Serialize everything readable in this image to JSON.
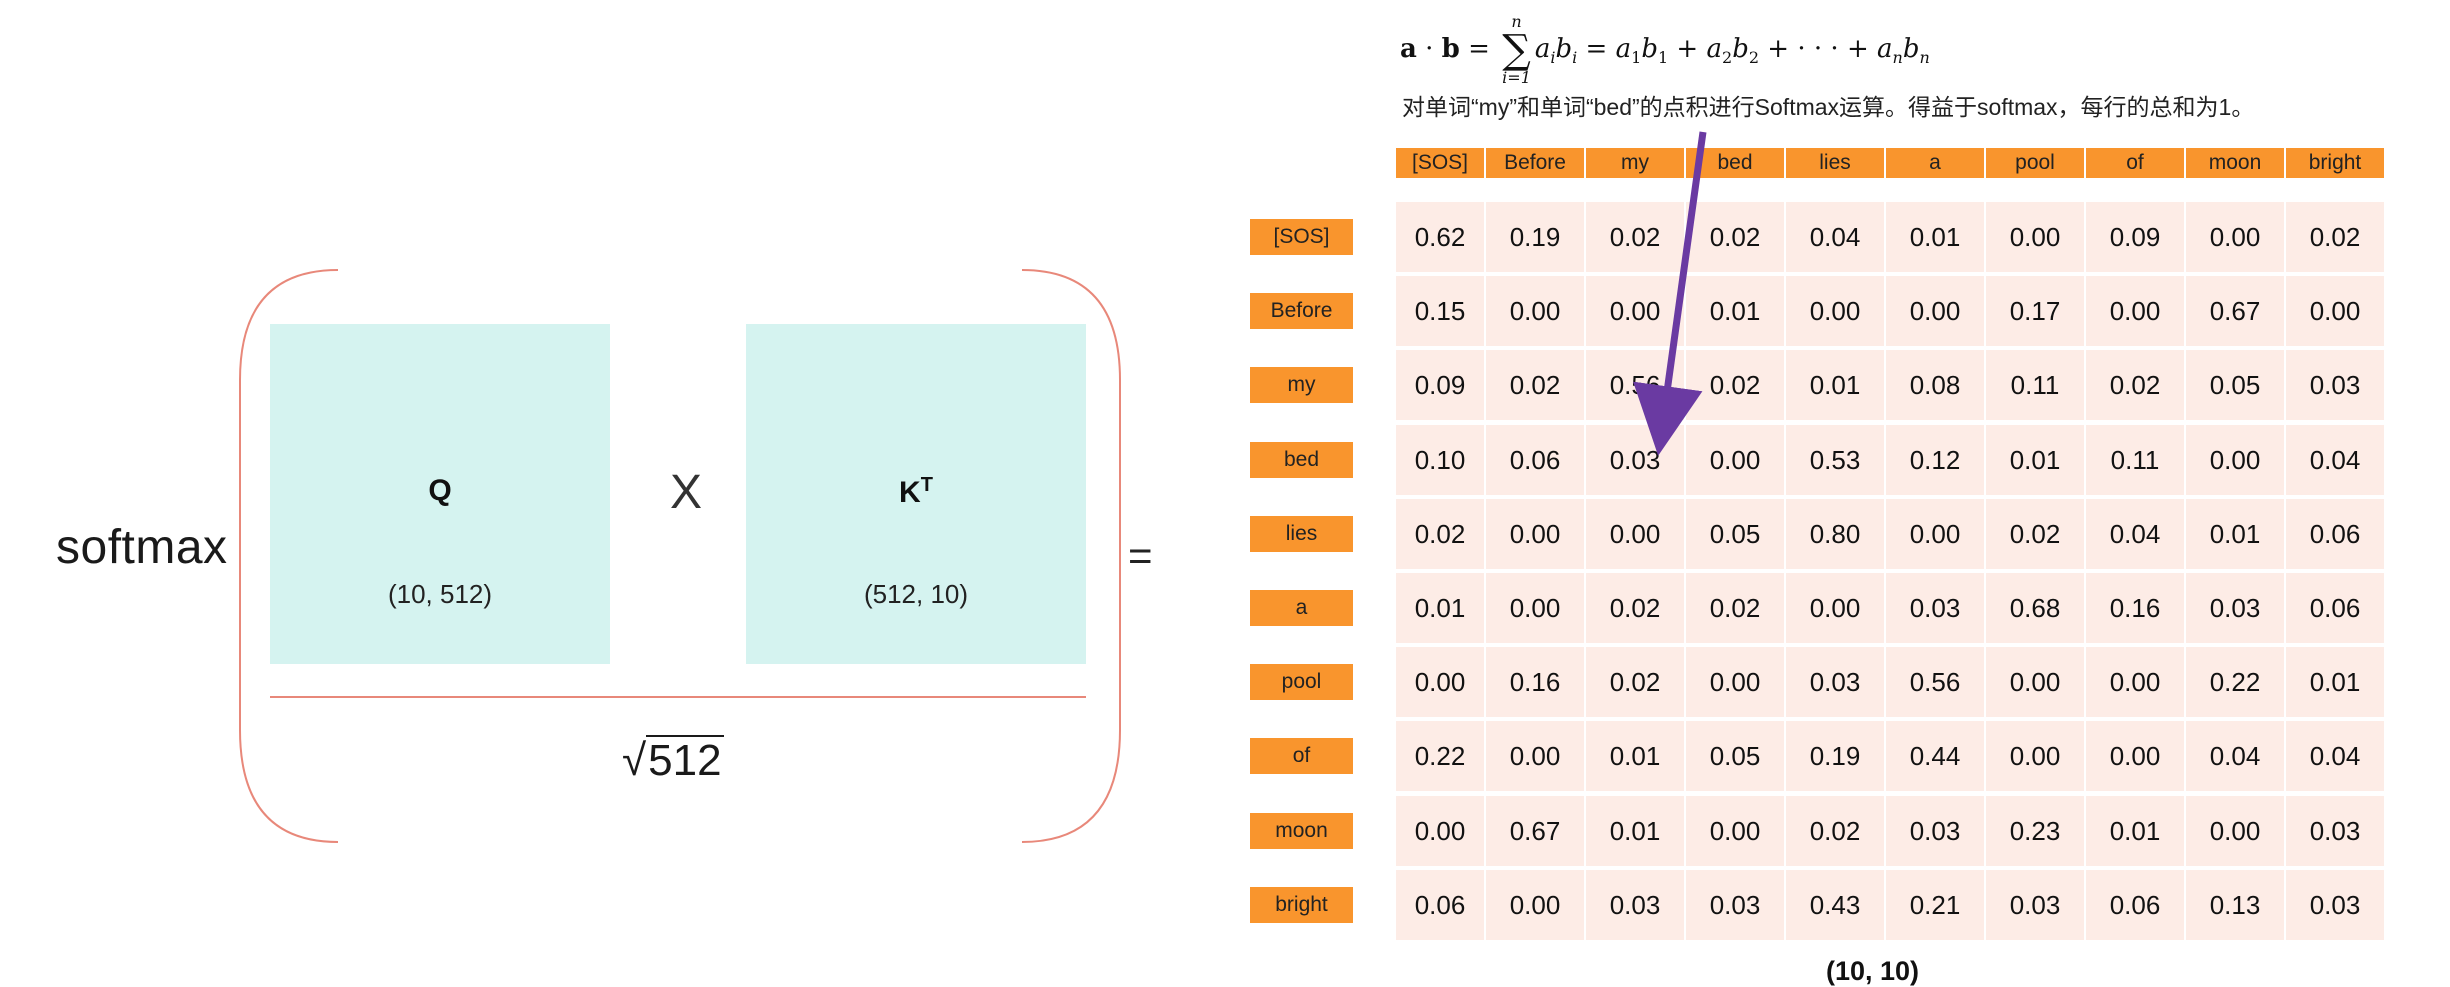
{
  "left_formula": {
    "softmax": "softmax",
    "q_label": "Q",
    "q_shape": "(10, 512)",
    "times": "X",
    "k_label": "K",
    "k_superscript": "T",
    "k_shape": "(512, 10)",
    "sqrt_value": "512",
    "equals": "="
  },
  "top": {
    "caption": "对单词“my”和单词“bed”的点积进行Softmax运算。得益于softmax，每行的总和为1。"
  },
  "table": {
    "headers": [
      "[SOS]",
      "Before",
      "my",
      "bed",
      "lies",
      "a",
      "pool",
      "of",
      "moon",
      "bright"
    ],
    "rows": [
      {
        "label": "[SOS]",
        "values": [
          "0.62",
          "0.19",
          "0.02",
          "0.02",
          "0.04",
          "0.01",
          "0.00",
          "0.09",
          "0.00",
          "0.02"
        ]
      },
      {
        "label": "Before",
        "values": [
          "0.15",
          "0.00",
          "0.00",
          "0.01",
          "0.00",
          "0.00",
          "0.17",
          "0.00",
          "0.67",
          "0.00"
        ]
      },
      {
        "label": "my",
        "values": [
          "0.09",
          "0.02",
          "0.56",
          "0.02",
          "0.01",
          "0.08",
          "0.11",
          "0.02",
          "0.05",
          "0.03"
        ]
      },
      {
        "label": "bed",
        "values": [
          "0.10",
          "0.06",
          "0.03",
          "0.00",
          "0.53",
          "0.12",
          "0.01",
          "0.11",
          "0.00",
          "0.04"
        ]
      },
      {
        "label": "lies",
        "values": [
          "0.02",
          "0.00",
          "0.00",
          "0.05",
          "0.80",
          "0.00",
          "0.02",
          "0.04",
          "0.01",
          "0.06"
        ]
      },
      {
        "label": "a",
        "values": [
          "0.01",
          "0.00",
          "0.02",
          "0.02",
          "0.00",
          "0.03",
          "0.68",
          "0.16",
          "0.03",
          "0.06"
        ]
      },
      {
        "label": "pool",
        "values": [
          "0.00",
          "0.16",
          "0.02",
          "0.00",
          "0.03",
          "0.56",
          "0.00",
          "0.00",
          "0.22",
          "0.01"
        ]
      },
      {
        "label": "of",
        "values": [
          "0.22",
          "0.00",
          "0.01",
          "0.05",
          "0.19",
          "0.44",
          "0.00",
          "0.00",
          "0.04",
          "0.04"
        ]
      },
      {
        "label": "moon",
        "values": [
          "0.00",
          "0.67",
          "0.01",
          "0.00",
          "0.02",
          "0.03",
          "0.23",
          "0.01",
          "0.00",
          "0.03"
        ]
      },
      {
        "label": "bright",
        "values": [
          "0.06",
          "0.00",
          "0.03",
          "0.03",
          "0.43",
          "0.21",
          "0.03",
          "0.06",
          "0.13",
          "0.03"
        ]
      }
    ],
    "shape": "(10, 10)"
  },
  "colors": {
    "header_orange": "#f9952d",
    "cell_pink": "#fdece6",
    "matrix_teal": "#d5f3f0",
    "bracket_red": "#e8887a",
    "arrow_purple": "#6a3aa2"
  }
}
